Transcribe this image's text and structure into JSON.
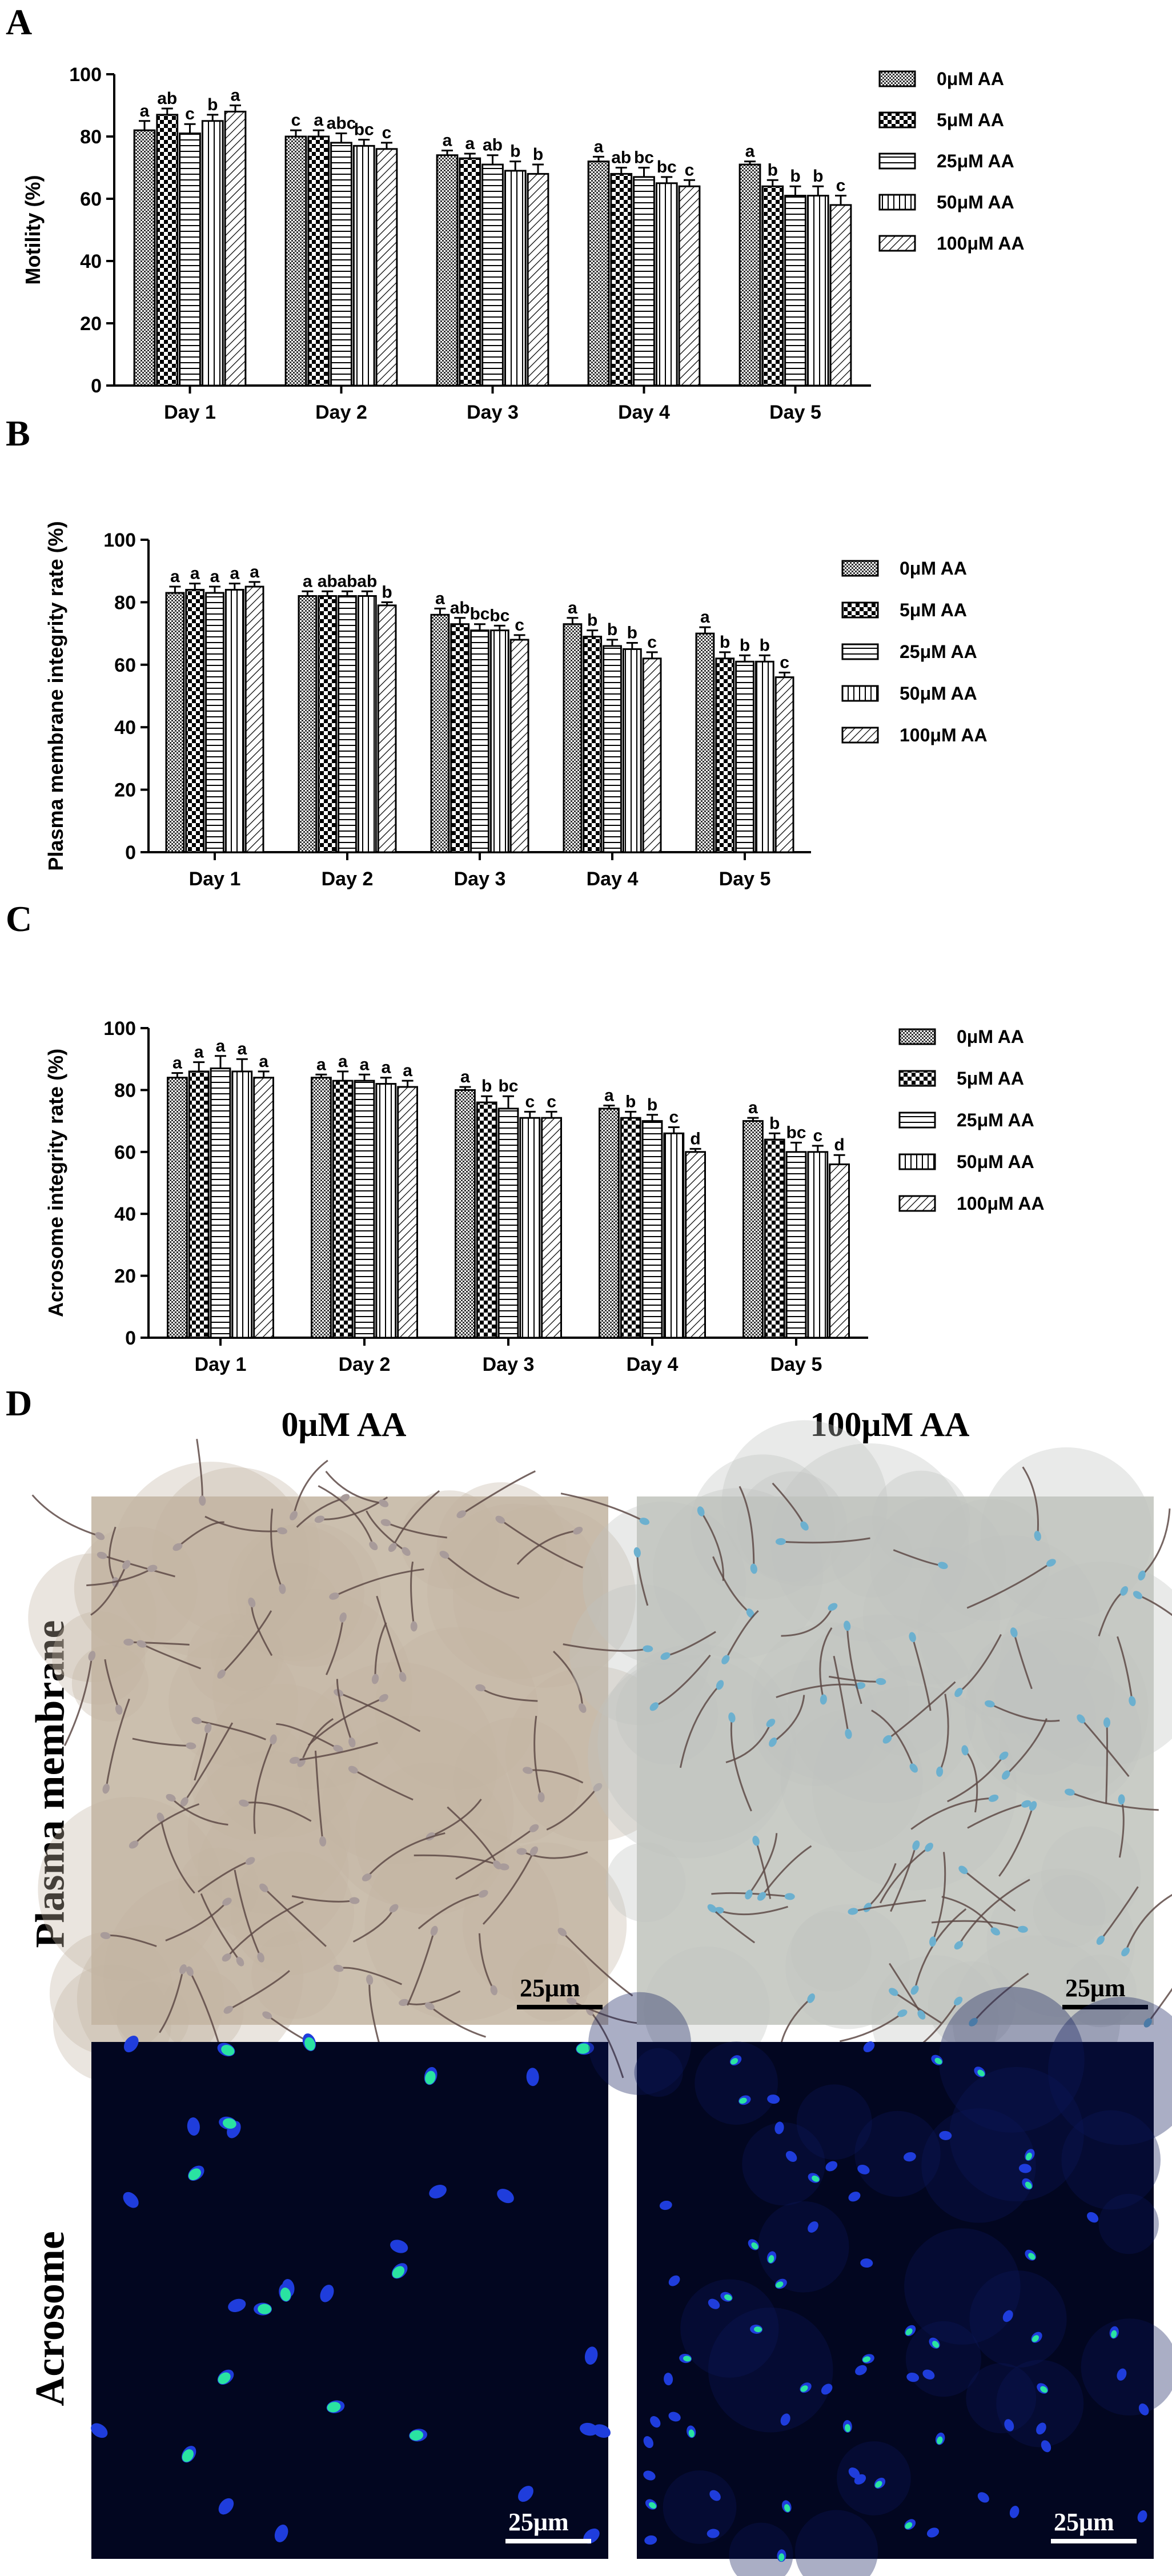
{
  "chart_data": [
    {
      "panel": "A",
      "type": "bar",
      "ylabel": "Motility (%)",
      "xlabel": "",
      "ylim": [
        0,
        100
      ],
      "yticks": [
        0,
        20,
        40,
        60,
        80,
        100
      ],
      "categories": [
        "Day 1",
        "Day 2",
        "Day 3",
        "Day 4",
        "Day 5"
      ],
      "series": [
        {
          "name": "0μM AA",
          "values": [
            82,
            80,
            74,
            72,
            71
          ],
          "errors": [
            3,
            2,
            1.5,
            1.5,
            1
          ],
          "letters": [
            "a",
            "c",
            "a",
            "a",
            "a"
          ]
        },
        {
          "name": "5μM AA",
          "values": [
            87,
            80,
            73,
            68,
            64
          ],
          "errors": [
            2,
            2,
            1.5,
            2,
            2
          ],
          "letters": [
            "ab",
            "a",
            "a",
            "ab",
            "b"
          ]
        },
        {
          "name": "25μM AA",
          "values": [
            81,
            78,
            71,
            67,
            61
          ],
          "errors": [
            3,
            3,
            3,
            3,
            3
          ],
          "letters": [
            "c",
            "abc",
            "ab",
            "bc",
            "b"
          ]
        },
        {
          "name": "50μM AA",
          "values": [
            85,
            77,
            69,
            65,
            61
          ],
          "errors": [
            2,
            2,
            3,
            2,
            3
          ],
          "letters": [
            "b",
            "bc",
            "b",
            "bc",
            "b"
          ]
        },
        {
          "name": "100μM AA",
          "values": [
            88,
            76,
            68,
            64,
            58
          ],
          "errors": [
            2,
            2,
            3,
            2,
            3
          ],
          "letters": [
            "a",
            "c",
            "b",
            "c",
            "c"
          ]
        }
      ],
      "legend_position": "right"
    },
    {
      "panel": "B",
      "type": "bar",
      "ylabel": "Plasma membrane integrity rate (%)",
      "xlabel": "",
      "ylim": [
        0,
        100
      ],
      "yticks": [
        0,
        20,
        40,
        60,
        80,
        100
      ],
      "categories": [
        "Day 1",
        "Day 2",
        "Day 3",
        "Day 4",
        "Day 5"
      ],
      "series": [
        {
          "name": "0μM AA",
          "values": [
            83,
            82,
            76,
            73,
            70
          ],
          "errors": [
            2,
            1.5,
            2,
            2,
            2
          ],
          "letters": [
            "a",
            "a",
            "a",
            "a",
            "a"
          ]
        },
        {
          "name": "5μM AA",
          "values": [
            84,
            82,
            73,
            69,
            62
          ],
          "errors": [
            2,
            1.5,
            2,
            2,
            2
          ],
          "letters": [
            "a",
            "ab",
            "ab",
            "b",
            "b"
          ]
        },
        {
          "name": "25μM AA",
          "values": [
            83,
            82,
            71,
            66,
            61
          ],
          "errors": [
            2,
            1.5,
            2,
            2,
            2
          ],
          "letters": [
            "a",
            "ab",
            "bc",
            "b",
            "b"
          ]
        },
        {
          "name": "50μM AA",
          "values": [
            84,
            82,
            71,
            65,
            61
          ],
          "errors": [
            2,
            1.5,
            1.5,
            2,
            2
          ],
          "letters": [
            "a",
            "ab",
            "bc",
            "b",
            "b"
          ]
        },
        {
          "name": "100μM AA",
          "values": [
            85,
            79,
            68,
            62,
            56
          ],
          "errors": [
            1.5,
            1,
            1.5,
            2,
            1.5
          ],
          "letters": [
            "a",
            "b",
            "c",
            "c",
            "c"
          ]
        }
      ],
      "legend_position": "right"
    },
    {
      "panel": "C",
      "type": "bar",
      "ylabel": "Acrosome integrity rate (%)",
      "xlabel": "",
      "ylim": [
        0,
        100
      ],
      "yticks": [
        0,
        20,
        40,
        60,
        80,
        100
      ],
      "categories": [
        "Day 1",
        "Day 2",
        "Day 3",
        "Day 4",
        "Day 5"
      ],
      "series": [
        {
          "name": "0μM AA",
          "values": [
            84,
            84,
            80,
            74,
            70
          ],
          "errors": [
            1.5,
            1,
            1,
            1,
            1
          ],
          "letters": [
            "a",
            "a",
            "a",
            "a",
            "a"
          ]
        },
        {
          "name": "5μM AA",
          "values": [
            86,
            83,
            76,
            71,
            64
          ],
          "errors": [
            3,
            3,
            2,
            2,
            2
          ],
          "letters": [
            "a",
            "a",
            "b",
            "b",
            "b"
          ]
        },
        {
          "name": "25μM AA",
          "values": [
            87,
            83,
            74,
            70,
            60
          ],
          "errors": [
            4,
            2,
            4,
            2,
            3
          ],
          "letters": [
            "a",
            "a",
            "bc",
            "b",
            "bc"
          ]
        },
        {
          "name": "50μM AA",
          "values": [
            86,
            82,
            71,
            66,
            60
          ],
          "errors": [
            4,
            2,
            2,
            2,
            2
          ],
          "letters": [
            "a",
            "a",
            "c",
            "c",
            "c"
          ]
        },
        {
          "name": "100μM AA",
          "values": [
            84,
            81,
            71,
            60,
            56
          ],
          "errors": [
            2,
            2,
            2,
            1,
            3
          ],
          "letters": [
            "a",
            "a",
            "c",
            "d",
            "d"
          ]
        }
      ],
      "legend_position": "right"
    }
  ],
  "panel_d": {
    "letter": "D",
    "col_titles": [
      "0μM AA",
      "100μM AA"
    ],
    "row_titles": [
      "Plasma membrane",
      "Acrosome"
    ],
    "scale_bar_label": "25μm"
  },
  "colors": {
    "bar_fill": "#ffffff",
    "bar_stroke": "#000000",
    "bright_field_bg": "#c8bfb2",
    "fluor_bg": "#02061f",
    "sperm_tail": "#5a4540",
    "sperm_head_stain": "#6fa8c8",
    "nucleus_blue": "#1f3fd8",
    "acrosome_green": "#2dff9a"
  }
}
